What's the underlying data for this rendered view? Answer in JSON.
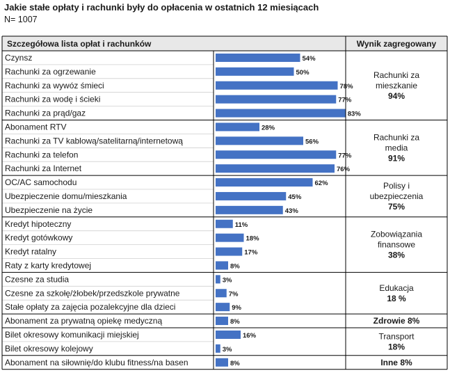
{
  "title": "Jakie stałe opłaty i rachunki były do opłacenia w ostatnich 12 miesiącach",
  "subtitle": "N= 1007",
  "chart_data": {
    "type": "bar",
    "orientation": "horizontal",
    "unit": "%",
    "xlim": [
      0,
      100
    ],
    "column_headers": {
      "list": "Szczegółowa lista opłat i rachunków",
      "aggregate": "Wynik zagregowany"
    },
    "groups": [
      {
        "items": [
          {
            "label": "Czynsz",
            "value": 54,
            "value_label": "54%"
          },
          {
            "label": "Rachunki za ogrzewanie",
            "value": 50,
            "value_label": "50%"
          },
          {
            "label": "Rachunki za wywóz śmieci",
            "value": 78,
            "value_label": "78%"
          },
          {
            "label": "Rachunki za wodę i ścieki",
            "value": 77,
            "value_label": "77%"
          },
          {
            "label": "Rachunki za prąd/gaz",
            "value": 83,
            "value_label": "83%"
          }
        ],
        "aggregate_lines": [
          "Rachunki za",
          "mieszkanie"
        ],
        "aggregate_value": "94%"
      },
      {
        "items": [
          {
            "label": "Abonament RTV",
            "value": 28,
            "value_label": "28%"
          },
          {
            "label": "Rachunki za TV kablową/satelitarną/internetową",
            "value": 56,
            "value_label": "56%"
          },
          {
            "label": "Rachunki za telefon",
            "value": 77,
            "value_label": "77%"
          },
          {
            "label": "Rachunki za Internet",
            "value": 76,
            "value_label": "76%"
          }
        ],
        "aggregate_lines": [
          "Rachunki za",
          "media"
        ],
        "aggregate_value": "91%"
      },
      {
        "items": [
          {
            "label": "OC/AC samochodu",
            "value": 62,
            "value_label": "62%"
          },
          {
            "label": "Ubezpieczenie domu/mieszkania",
            "value": 45,
            "value_label": "45%"
          },
          {
            "label": "Ubezpieczenie na życie",
            "value": 43,
            "value_label": "43%"
          }
        ],
        "aggregate_lines": [
          "Polisy i",
          "ubezpieczenia"
        ],
        "aggregate_value": "75%"
      },
      {
        "items": [
          {
            "label": "Kredyt hipoteczny",
            "value": 11,
            "value_label": "11%"
          },
          {
            "label": "Kredyt gotówkowy",
            "value": 18,
            "value_label": "18%"
          },
          {
            "label": "Kredyt ratalny",
            "value": 17,
            "value_label": "17%"
          },
          {
            "label": "Raty z karty kredytowej",
            "value": 8,
            "value_label": "8%"
          }
        ],
        "aggregate_lines": [
          "Zobowiązania",
          "finansowe"
        ],
        "aggregate_value": "38%"
      },
      {
        "items": [
          {
            "label": "Czesne za studia",
            "value": 3,
            "value_label": "3%"
          },
          {
            "label": "Czesne za szkołę/żłobek/przedszkole prywatne",
            "value": 7,
            "value_label": "7%"
          },
          {
            "label": "Stałe opłaty za zajęcia pozalekcyjne dla dzieci",
            "value": 9,
            "value_label": "9%"
          }
        ],
        "aggregate_lines": [
          "Edukacja"
        ],
        "aggregate_value": "18 %"
      },
      {
        "items": [
          {
            "label": "Abonament za prywatną opiekę medyczną",
            "value": 8,
            "value_label": "8%"
          }
        ],
        "aggregate_lines": [],
        "aggregate_value": "Zdrowie 8%"
      },
      {
        "items": [
          {
            "label": "Bilet okresowy komunikacji miejskiej",
            "value": 16,
            "value_label": "16%"
          },
          {
            "label": "Bilet okresowy kolejowy",
            "value": 3,
            "value_label": "3%"
          }
        ],
        "aggregate_lines": [
          "Transport"
        ],
        "aggregate_value": "18%"
      },
      {
        "items": [
          {
            "label": "Abonament na siłownię/do klubu fitness/na basen",
            "value": 8,
            "value_label": "8%"
          }
        ],
        "aggregate_lines": [],
        "aggregate_value": "Inne 8%"
      }
    ],
    "colors": {
      "bar": "#4472c4",
      "header_bg": "#e8e8e8",
      "grid": "#000000",
      "row_line": "#cfcfcf"
    }
  }
}
